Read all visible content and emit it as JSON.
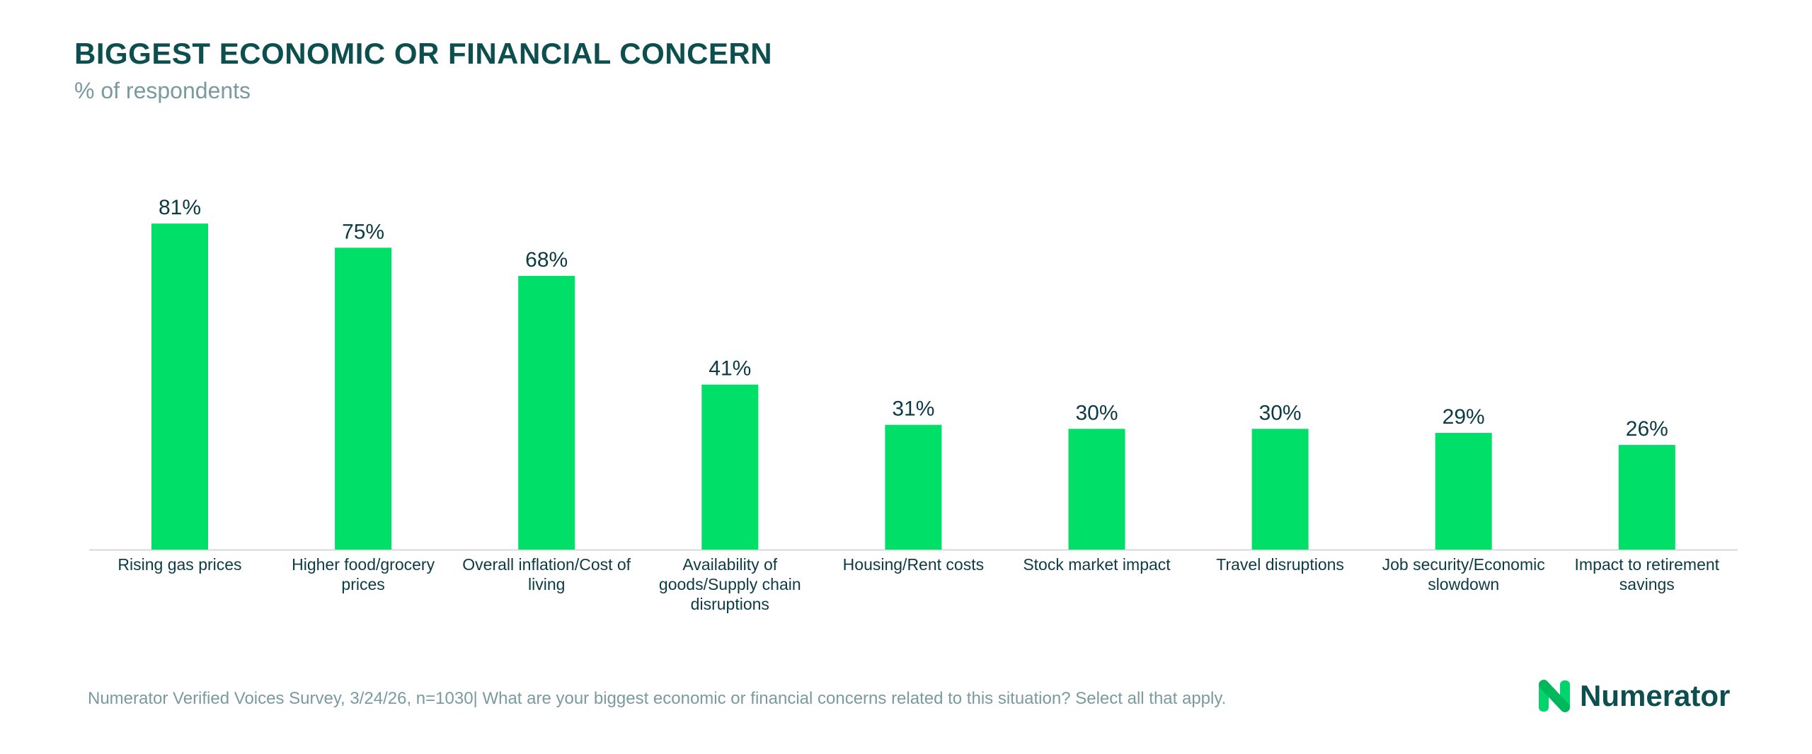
{
  "header": {
    "title": "BIGGEST ECONOMIC OR FINANCIAL CONCERN",
    "subtitle": "% of respondents"
  },
  "footer": {
    "source": "Numerator Verified Voices Survey, 3/24/26, n=1030| What are your biggest economic or financial concerns related to this situation? Select all that apply.",
    "brand": "Numerator"
  },
  "colors": {
    "bar": "#00e068",
    "title": "#0d4f4f",
    "subtitle": "#7a9aa0",
    "axis": "#d9d9d9",
    "logo_accent": "#00d46a"
  },
  "chart_data": {
    "type": "bar",
    "title": "BIGGEST ECONOMIC OR FINANCIAL CONCERN",
    "subtitle": "% of respondents",
    "xlabel": "",
    "ylabel": "",
    "categories": [
      "Rising gas prices",
      "Higher food/grocery prices",
      "Overall inflation/Cost of living",
      "Availability of goods/Supply chain disruptions",
      "Housing/Rent costs",
      "Stock market impact",
      "Travel disruptions",
      "Job security/Economic slowdown",
      "Impact to retirement savings"
    ],
    "category_lines": [
      [
        "Rising gas prices"
      ],
      [
        "Higher food/grocery",
        "prices"
      ],
      [
        "Overall inflation/Cost of",
        "living"
      ],
      [
        "Availability of",
        "goods/Supply chain",
        "disruptions"
      ],
      [
        "Housing/Rent costs"
      ],
      [
        "Stock market impact"
      ],
      [
        "Travel disruptions"
      ],
      [
        "Job security/Economic",
        "slowdown"
      ],
      [
        "Impact to retirement",
        "savings"
      ]
    ],
    "values": [
      81,
      75,
      68,
      41,
      31,
      30,
      30,
      29,
      26
    ],
    "value_labels": [
      "81%",
      "75%",
      "68%",
      "41%",
      "31%",
      "30%",
      "30%",
      "29%",
      "26%"
    ],
    "ylim": [
      0,
      100
    ],
    "grid": false,
    "legend": "none"
  }
}
